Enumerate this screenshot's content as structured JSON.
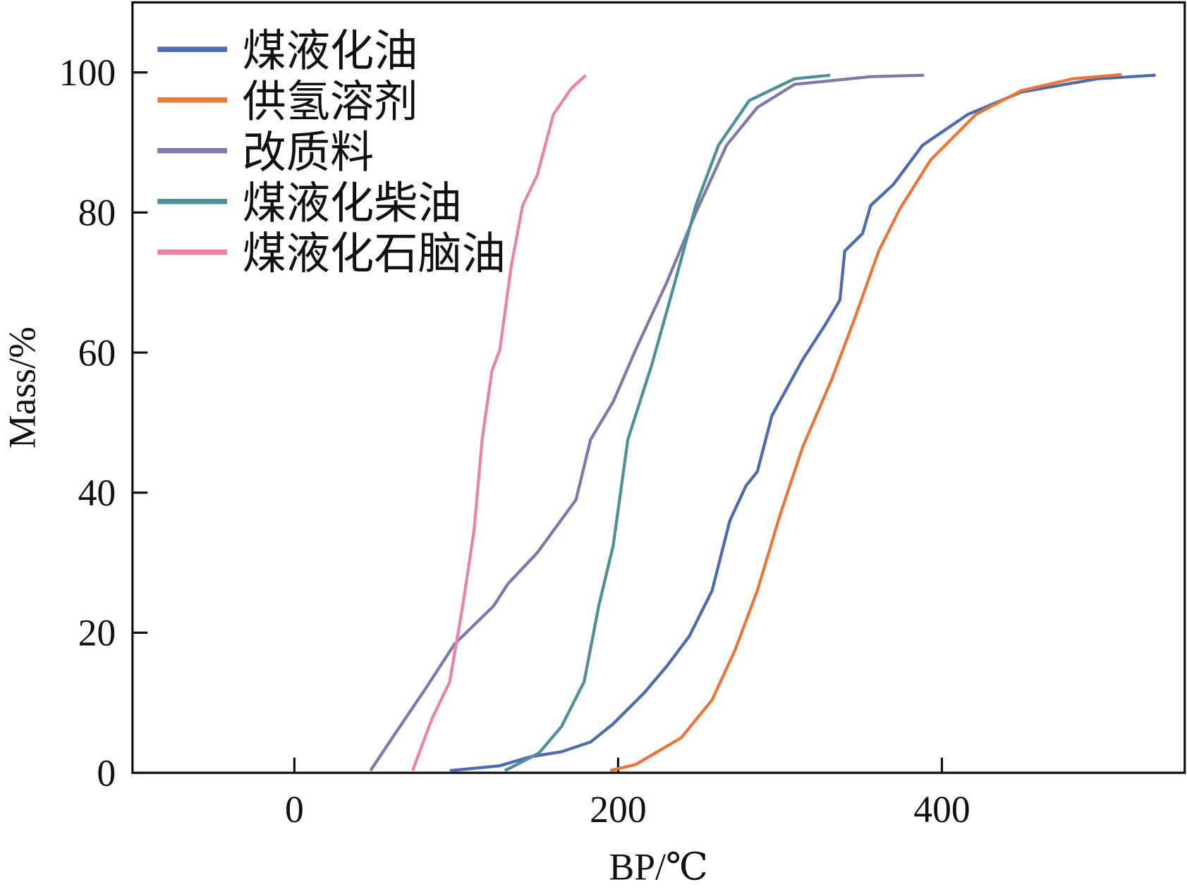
{
  "chart_data": {
    "type": "line",
    "title": "",
    "xlabel": "BP/℃",
    "ylabel": "Mass/%",
    "xlim": [
      -100,
      550
    ],
    "ylim": [
      0,
      110
    ],
    "xticks": [
      0,
      200,
      400
    ],
    "yticks": [
      0,
      20,
      40,
      60,
      80,
      100
    ],
    "grid": false,
    "legend_position": "top-left",
    "series": [
      {
        "name": "煤液化油",
        "color": "#4f6bb0",
        "points": [
          [
            96,
            0.3
          ],
          [
            127,
            1
          ],
          [
            146,
            2.3
          ],
          [
            165,
            3
          ],
          [
            183,
            4.4
          ],
          [
            197,
            7
          ],
          [
            216,
            11.4
          ],
          [
            230,
            15.2
          ],
          [
            244,
            19.5
          ],
          [
            258,
            26
          ],
          [
            269,
            36
          ],
          [
            279,
            41
          ],
          [
            286,
            43
          ],
          [
            295,
            51
          ],
          [
            314,
            59
          ],
          [
            328,
            64
          ],
          [
            337,
            67.5
          ],
          [
            340,
            74.5
          ],
          [
            351,
            77
          ],
          [
            356,
            81
          ],
          [
            370,
            84
          ],
          [
            388,
            89.6
          ],
          [
            416,
            94
          ],
          [
            449,
            97.2
          ],
          [
            496,
            99.1
          ],
          [
            532,
            99.6
          ]
        ]
      },
      {
        "name": "供氢溶剂",
        "color": "#e9773a",
        "points": [
          [
            195,
            0.3
          ],
          [
            211,
            1.2
          ],
          [
            239,
            5
          ],
          [
            258,
            10.4
          ],
          [
            272,
            17.4
          ],
          [
            286,
            26
          ],
          [
            300,
            36.8
          ],
          [
            314,
            46.5
          ],
          [
            332,
            56.2
          ],
          [
            346,
            64.8
          ],
          [
            361,
            74.5
          ],
          [
            374,
            80.5
          ],
          [
            393,
            87.5
          ],
          [
            421,
            94
          ],
          [
            449,
            97.4
          ],
          [
            481,
            99.1
          ],
          [
            511,
            99.7
          ]
        ]
      },
      {
        "name": "改质料",
        "color": "#7f78aa",
        "points": [
          [
            47,
            0.3
          ],
          [
            62,
            5.5
          ],
          [
            81,
            12
          ],
          [
            99,
            18.4
          ],
          [
            123,
            23.8
          ],
          [
            132,
            27
          ],
          [
            150,
            31.4
          ],
          [
            174,
            39
          ],
          [
            183,
            47.6
          ],
          [
            197,
            53
          ],
          [
            211,
            60.5
          ],
          [
            230,
            70
          ],
          [
            248,
            80
          ],
          [
            267,
            89.6
          ],
          [
            286,
            95
          ],
          [
            309,
            98.3
          ],
          [
            356,
            99.4
          ],
          [
            389,
            99.6
          ]
        ]
      },
      {
        "name": "煤液化柴油",
        "color": "#4e9099",
        "points": [
          [
            130,
            0.3
          ],
          [
            151,
            2.8
          ],
          [
            165,
            6.6
          ],
          [
            179,
            13
          ],
          [
            188,
            23.8
          ],
          [
            197,
            32.5
          ],
          [
            206,
            47.6
          ],
          [
            221,
            58.4
          ],
          [
            235,
            70
          ],
          [
            248,
            81
          ],
          [
            262,
            89.6
          ],
          [
            281,
            96
          ],
          [
            309,
            99.1
          ],
          [
            331,
            99.6
          ]
        ]
      },
      {
        "name": "煤液化石脑油",
        "color": "#ea82ac",
        "points": [
          [
            73,
            0.3
          ],
          [
            85,
            7.7
          ],
          [
            96,
            13
          ],
          [
            104,
            23.8
          ],
          [
            111,
            34.6
          ],
          [
            116,
            47.6
          ],
          [
            122,
            57.3
          ],
          [
            127,
            60.5
          ],
          [
            134,
            72.4
          ],
          [
            141,
            81
          ],
          [
            150,
            85.3
          ],
          [
            160,
            94
          ],
          [
            171,
            97.7
          ],
          [
            180,
            99.6
          ]
        ]
      }
    ]
  }
}
